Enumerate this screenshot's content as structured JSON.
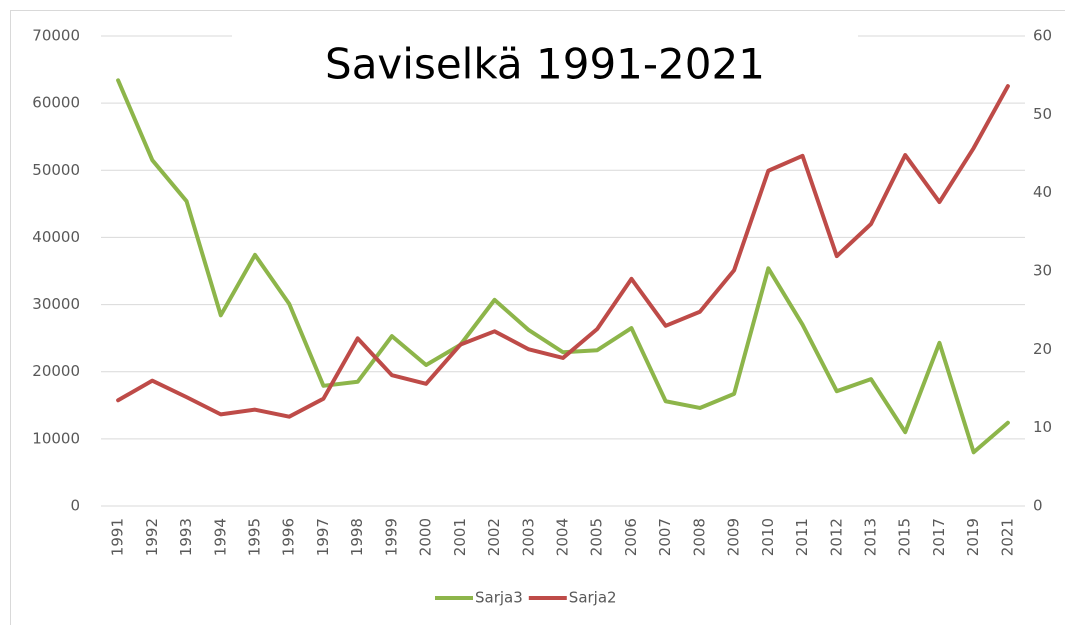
{
  "chart_data": {
    "type": "line",
    "title": "Saviselkä 1991-2021",
    "categories": [
      "1991",
      "1992",
      "1993",
      "1994",
      "1995",
      "1996",
      "1997",
      "1998",
      "1999",
      "2000",
      "2001",
      "2002",
      "2003",
      "2004",
      "2005",
      "2006",
      "2007",
      "2008",
      "2009",
      "2010",
      "2011",
      "2012",
      "2013",
      "2015",
      "2017",
      "2019",
      "2021"
    ],
    "series": [
      {
        "name": "Sarja3",
        "color": "#8db54a",
        "axis": "y",
        "values": [
          63400,
          51500,
          45400,
          28400,
          37400,
          30100,
          17900,
          18500,
          25300,
          21000,
          24000,
          30700,
          26200,
          22900,
          23200,
          26500,
          15600,
          14600,
          16700,
          35400,
          27000,
          17100,
          18900,
          11000,
          24300,
          8000,
          12400
        ]
      },
      {
        "name": "Sarja2",
        "color": "#be4b48",
        "axis": "y2",
        "values": [
          13.5,
          16.0,
          13.9,
          11.7,
          12.3,
          11.4,
          13.7,
          21.4,
          16.7,
          15.6,
          20.6,
          22.3,
          20.0,
          18.9,
          22.6,
          29.0,
          23.0,
          24.8,
          30.1,
          42.8,
          44.7,
          31.9,
          36.0,
          44.8,
          38.8,
          45.7,
          53.6
        ]
      }
    ],
    "ylim": [
      0,
      70000
    ],
    "yticks": [
      0,
      10000,
      20000,
      30000,
      40000,
      50000,
      60000,
      70000
    ],
    "y2lim": [
      0,
      60
    ],
    "y2ticks": [
      0,
      10,
      20,
      30,
      40,
      50,
      60
    ],
    "grid": true,
    "legend": "bottom"
  }
}
